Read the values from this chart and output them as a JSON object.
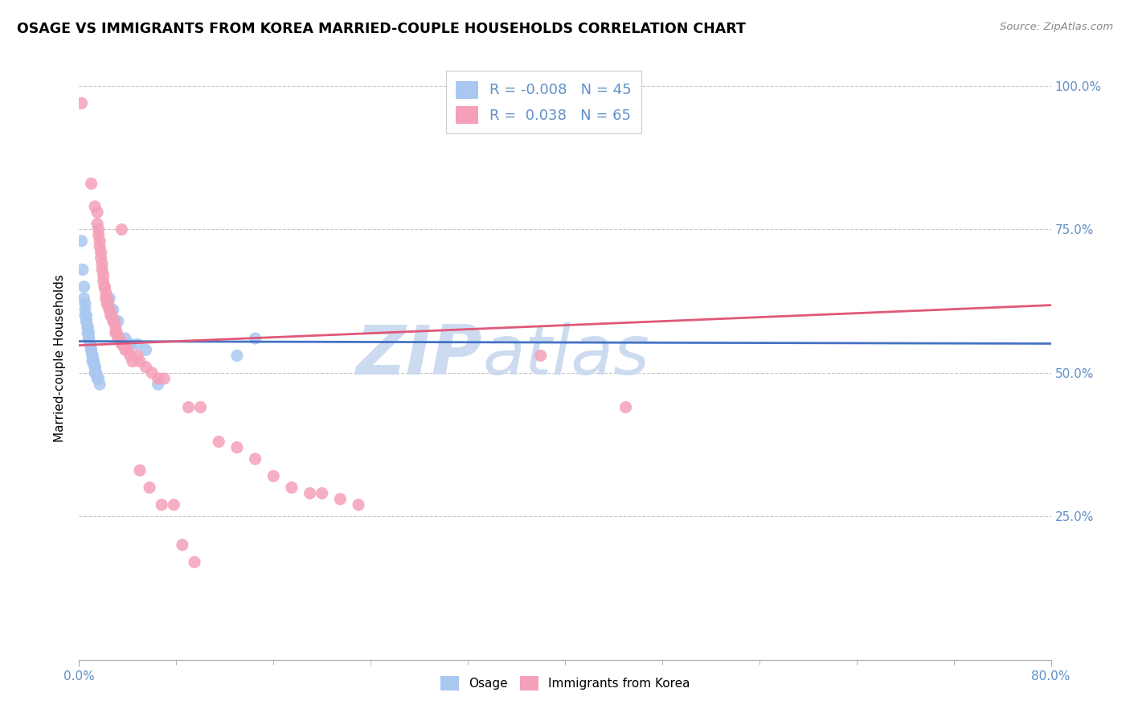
{
  "title": "OSAGE VS IMMIGRANTS FROM KOREA MARRIED-COUPLE HOUSEHOLDS CORRELATION CHART",
  "source": "Source: ZipAtlas.com",
  "ylabel": "Married-couple Households",
  "xlim": [
    0.0,
    0.8
  ],
  "ylim": [
    0.0,
    1.05
  ],
  "legend_osage_R": "-0.008",
  "legend_osage_N": "45",
  "legend_korea_R": "0.038",
  "legend_korea_N": "65",
  "blue_color": "#A8C8F0",
  "pink_color": "#F4A0B8",
  "blue_line_color": "#4472C4",
  "pink_line_color": "#E05878",
  "blue_trend": [
    0.555,
    0.551
  ],
  "pink_trend": [
    0.548,
    0.618
  ],
  "background_color": "#FFFFFF",
  "grid_color": "#C8C8C8",
  "watermark_color": "#C8D8F0",
  "right_axis_color": "#6090C8",
  "osage_points": [
    [
      0.002,
      0.73
    ],
    [
      0.003,
      0.68
    ],
    [
      0.004,
      0.65
    ],
    [
      0.004,
      0.63
    ],
    [
      0.005,
      0.62
    ],
    [
      0.005,
      0.61
    ],
    [
      0.005,
      0.6
    ],
    [
      0.006,
      0.6
    ],
    [
      0.006,
      0.59
    ],
    [
      0.006,
      0.59
    ],
    [
      0.007,
      0.58
    ],
    [
      0.007,
      0.58
    ],
    [
      0.007,
      0.57
    ],
    [
      0.008,
      0.57
    ],
    [
      0.008,
      0.56
    ],
    [
      0.008,
      0.56
    ],
    [
      0.009,
      0.55
    ],
    [
      0.009,
      0.55
    ],
    [
      0.009,
      0.55
    ],
    [
      0.01,
      0.54
    ],
    [
      0.01,
      0.54
    ],
    [
      0.01,
      0.54
    ],
    [
      0.011,
      0.53
    ],
    [
      0.011,
      0.53
    ],
    [
      0.011,
      0.52
    ],
    [
      0.012,
      0.52
    ],
    [
      0.012,
      0.52
    ],
    [
      0.013,
      0.51
    ],
    [
      0.013,
      0.51
    ],
    [
      0.013,
      0.5
    ],
    [
      0.014,
      0.5
    ],
    [
      0.014,
      0.5
    ],
    [
      0.015,
      0.49
    ],
    [
      0.016,
      0.49
    ],
    [
      0.017,
      0.48
    ],
    [
      0.025,
      0.63
    ],
    [
      0.028,
      0.61
    ],
    [
      0.032,
      0.59
    ],
    [
      0.038,
      0.56
    ],
    [
      0.042,
      0.55
    ],
    [
      0.048,
      0.55
    ],
    [
      0.055,
      0.54
    ],
    [
      0.065,
      0.48
    ],
    [
      0.13,
      0.53
    ],
    [
      0.145,
      0.56
    ]
  ],
  "korea_points": [
    [
      0.002,
      0.97
    ],
    [
      0.01,
      0.83
    ],
    [
      0.013,
      0.79
    ],
    [
      0.015,
      0.78
    ],
    [
      0.015,
      0.76
    ],
    [
      0.016,
      0.75
    ],
    [
      0.016,
      0.74
    ],
    [
      0.017,
      0.73
    ],
    [
      0.017,
      0.72
    ],
    [
      0.018,
      0.71
    ],
    [
      0.018,
      0.7
    ],
    [
      0.019,
      0.69
    ],
    [
      0.019,
      0.68
    ],
    [
      0.02,
      0.67
    ],
    [
      0.02,
      0.66
    ],
    [
      0.021,
      0.65
    ],
    [
      0.021,
      0.65
    ],
    [
      0.022,
      0.64
    ],
    [
      0.022,
      0.63
    ],
    [
      0.023,
      0.63
    ],
    [
      0.023,
      0.62
    ],
    [
      0.024,
      0.62
    ],
    [
      0.025,
      0.61
    ],
    [
      0.025,
      0.61
    ],
    [
      0.026,
      0.6
    ],
    [
      0.027,
      0.6
    ],
    [
      0.028,
      0.59
    ],
    [
      0.029,
      0.59
    ],
    [
      0.03,
      0.58
    ],
    [
      0.03,
      0.57
    ],
    [
      0.031,
      0.57
    ],
    [
      0.032,
      0.56
    ],
    [
      0.033,
      0.56
    ],
    [
      0.035,
      0.55
    ],
    [
      0.036,
      0.55
    ],
    [
      0.038,
      0.54
    ],
    [
      0.04,
      0.54
    ],
    [
      0.042,
      0.53
    ],
    [
      0.044,
      0.52
    ],
    [
      0.048,
      0.53
    ],
    [
      0.05,
      0.52
    ],
    [
      0.055,
      0.51
    ],
    [
      0.06,
      0.5
    ],
    [
      0.065,
      0.49
    ],
    [
      0.07,
      0.49
    ],
    [
      0.035,
      0.75
    ],
    [
      0.09,
      0.44
    ],
    [
      0.1,
      0.44
    ],
    [
      0.115,
      0.38
    ],
    [
      0.13,
      0.37
    ],
    [
      0.145,
      0.35
    ],
    [
      0.16,
      0.32
    ],
    [
      0.175,
      0.3
    ],
    [
      0.19,
      0.29
    ],
    [
      0.2,
      0.29
    ],
    [
      0.215,
      0.28
    ],
    [
      0.23,
      0.27
    ],
    [
      0.05,
      0.33
    ],
    [
      0.058,
      0.3
    ],
    [
      0.068,
      0.27
    ],
    [
      0.078,
      0.27
    ],
    [
      0.085,
      0.2
    ],
    [
      0.095,
      0.17
    ],
    [
      0.45,
      0.44
    ],
    [
      0.38,
      0.53
    ]
  ]
}
